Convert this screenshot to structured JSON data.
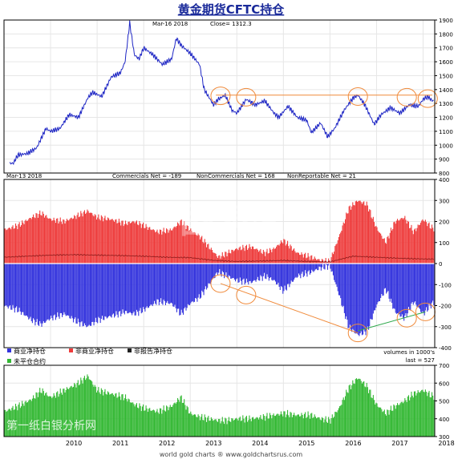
{
  "title": "黄金期货CFTC持仓",
  "colors": {
    "price_line": "#1d25c4",
    "commercials": "#3333dd",
    "noncommercials": "#ee3b3b",
    "nonreportable": "#202020",
    "open_interest": "#33b833",
    "annotation": "#f08a3a",
    "trend_line_green": "#2da84a",
    "grid": "#e6e6e6"
  },
  "watermarks": {
    "middle": "图表家",
    "bottom": "第一纸白银分析网"
  },
  "footer": "world gold charts ® www.goldchartsrus.com",
  "chart_data": [
    {
      "type": "line",
      "panel": "price",
      "header": {
        "date": "Mar-16  2018",
        "close": "Close= 1312.3"
      },
      "ylim": [
        800,
        1900
      ],
      "yticks": [
        800,
        900,
        1000,
        1100,
        1200,
        1300,
        1400,
        1500,
        1600,
        1700,
        1800,
        1900
      ],
      "series": [
        {
          "x": [
            2009.2,
            2009.3,
            2009.5,
            2009.7,
            2009.9,
            2010.0,
            2010.2,
            2010.4,
            2010.6,
            2010.8,
            2010.9,
            2011.1,
            2011.3,
            2011.5,
            2011.6,
            2011.7,
            2011.8,
            2011.9,
            2012.0,
            2012.2,
            2012.4,
            2012.6,
            2012.7,
            2012.8,
            2013.0,
            2013.2,
            2013.3,
            2013.5,
            2013.6,
            2013.75,
            2013.9,
            2014.0,
            2014.2,
            2014.4,
            2014.6,
            2014.8,
            2014.9,
            2015.1,
            2015.3,
            2015.5,
            2015.6,
            2015.8,
            2015.95,
            2016.1,
            2016.3,
            2016.5,
            2016.6,
            2016.75,
            2016.95,
            2017.1,
            2017.3,
            2017.5,
            2017.7,
            2017.9,
            2018.0,
            2018.1,
            2018.2
          ],
          "y": [
            870,
            930,
            940,
            980,
            1120,
            1100,
            1120,
            1220,
            1200,
            1340,
            1380,
            1350,
            1490,
            1520,
            1600,
            1880,
            1650,
            1620,
            1700,
            1650,
            1580,
            1620,
            1770,
            1720,
            1660,
            1580,
            1400,
            1290,
            1330,
            1360,
            1250,
            1230,
            1330,
            1290,
            1320,
            1230,
            1200,
            1280,
            1200,
            1180,
            1090,
            1160,
            1060,
            1120,
            1250,
            1340,
            1360,
            1290,
            1150,
            1220,
            1270,
            1230,
            1290,
            1280,
            1330,
            1350,
            1320
          ]
        }
      ],
      "annotations": {
        "horizontal_line_value": 1360,
        "circles": [
          {
            "x": 2013.65,
            "y": 1355
          },
          {
            "x": 2014.2,
            "y": 1345
          },
          {
            "x": 2016.6,
            "y": 1350
          },
          {
            "x": 2017.65,
            "y": 1345
          },
          {
            "x": 2018.1,
            "y": 1335
          }
        ]
      }
    },
    {
      "type": "bar",
      "panel": "cot",
      "header": {
        "date": "Mar-13  2018",
        "commercials": "Commercials Net = -189",
        "noncommercials": "NonCommercials Net = 168",
        "nonreportable": "NonReportable Net = 21"
      },
      "ylim": [
        -400,
        400
      ],
      "yticks": [
        -400,
        -300,
        -200,
        -100,
        0,
        100,
        200,
        300,
        400
      ],
      "unit_note": "volumes in 1000's",
      "legend": [
        "商业净持仓",
        "非商业净持仓",
        "非报告净持仓"
      ],
      "series": [
        {
          "name": "商业净持仓",
          "x": [
            2009.0,
            2009.3,
            2009.6,
            2009.8,
            2010.0,
            2010.3,
            2010.6,
            2010.8,
            2011.0,
            2011.3,
            2011.6,
            2011.8,
            2012.0,
            2012.3,
            2012.6,
            2012.8,
            2013.0,
            2013.2,
            2013.4,
            2013.6,
            2013.8,
            2014.0,
            2014.3,
            2014.6,
            2014.8,
            2015.0,
            2015.3,
            2015.6,
            2015.8,
            2016.0,
            2016.2,
            2016.4,
            2016.6,
            2016.8,
            2017.0,
            2017.2,
            2017.4,
            2017.6,
            2017.8,
            2018.0,
            2018.2
          ],
          "values": [
            -200,
            -220,
            -270,
            -290,
            -260,
            -240,
            -280,
            -300,
            -270,
            -250,
            -230,
            -240,
            -220,
            -180,
            -190,
            -240,
            -190,
            -160,
            -100,
            -40,
            -60,
            -80,
            -90,
            -60,
            -80,
            -130,
            -60,
            -40,
            -20,
            -10,
            -150,
            -300,
            -340,
            -320,
            -200,
            -120,
            -230,
            -260,
            -180,
            -240,
            -189
          ]
        },
        {
          "name": "非商业净持仓",
          "x": [
            2009.0,
            2009.3,
            2009.6,
            2009.8,
            2010.0,
            2010.3,
            2010.6,
            2010.8,
            2011.0,
            2011.3,
            2011.6,
            2011.8,
            2012.0,
            2012.3,
            2012.6,
            2012.8,
            2013.0,
            2013.2,
            2013.4,
            2013.6,
            2013.8,
            2014.0,
            2014.3,
            2014.6,
            2014.8,
            2015.0,
            2015.3,
            2015.6,
            2015.8,
            2016.0,
            2016.2,
            2016.4,
            2016.6,
            2016.8,
            2017.0,
            2017.2,
            2017.4,
            2017.6,
            2017.8,
            2018.0,
            2018.2
          ],
          "values": [
            160,
            180,
            220,
            240,
            210,
            200,
            230,
            250,
            220,
            210,
            190,
            200,
            180,
            150,
            160,
            200,
            160,
            130,
            80,
            30,
            50,
            70,
            80,
            50,
            70,
            110,
            50,
            30,
            15,
            10,
            130,
            260,
            300,
            280,
            170,
            100,
            200,
            220,
            150,
            210,
            168
          ]
        },
        {
          "name": "非报告净持仓",
          "x": [
            2009.0,
            2009.5,
            2010.0,
            2010.5,
            2011.0,
            2011.5,
            2012.0,
            2012.5,
            2013.0,
            2013.5,
            2014.0,
            2014.5,
            2015.0,
            2015.5,
            2016.0,
            2016.5,
            2017.0,
            2017.5,
            2018.0,
            2018.2
          ],
          "values": [
            30,
            35,
            40,
            42,
            40,
            38,
            35,
            30,
            28,
            15,
            10,
            12,
            15,
            10,
            8,
            35,
            30,
            25,
            22,
            21
          ]
        }
      ],
      "annotations": {
        "circles": [
          {
            "x": 2013.65,
            "y": -95
          },
          {
            "x": 2014.2,
            "y": -150
          },
          {
            "x": 2016.6,
            "y": -330
          },
          {
            "x": 2017.65,
            "y": -260
          },
          {
            "x": 2018.05,
            "y": -230
          }
        ],
        "orange_trend": [
          {
            "x": 2013.65,
            "y": -95
          },
          {
            "x": 2016.6,
            "y": -330
          }
        ],
        "green_trend": [
          {
            "x": 2016.6,
            "y": -320
          },
          {
            "x": 2018.05,
            "y": -230
          }
        ]
      }
    },
    {
      "type": "bar",
      "panel": "open_interest",
      "legend": [
        "未平仓合约"
      ],
      "last_label": "last = 527",
      "ylim": [
        300,
        700
      ],
      "yticks": [
        300,
        400,
        500,
        600,
        700
      ],
      "xlabels": [
        "2010",
        "2011",
        "2012",
        "2013",
        "2014",
        "2015",
        "2016",
        "2017",
        "2018"
      ],
      "series": [
        {
          "name": "未平仓合约",
          "x": [
            2009.0,
            2009.3,
            2009.6,
            2009.8,
            2010.0,
            2010.3,
            2010.6,
            2010.8,
            2011.0,
            2011.3,
            2011.6,
            2011.8,
            2012.0,
            2012.3,
            2012.6,
            2012.8,
            2013.0,
            2013.2,
            2013.4,
            2013.6,
            2013.8,
            2014.0,
            2014.3,
            2014.6,
            2014.8,
            2015.0,
            2015.3,
            2015.6,
            2015.8,
            2016.0,
            2016.2,
            2016.4,
            2016.6,
            2016.8,
            2017.0,
            2017.2,
            2017.4,
            2017.6,
            2017.8,
            2018.0,
            2018.2
          ],
          "values": [
            440,
            470,
            510,
            560,
            520,
            560,
            600,
            640,
            560,
            540,
            520,
            480,
            460,
            440,
            470,
            520,
            430,
            410,
            400,
            390,
            390,
            400,
            400,
            410,
            420,
            430,
            420,
            420,
            400,
            390,
            460,
            570,
            630,
            580,
            480,
            430,
            470,
            500,
            540,
            560,
            527
          ]
        }
      ]
    }
  ]
}
